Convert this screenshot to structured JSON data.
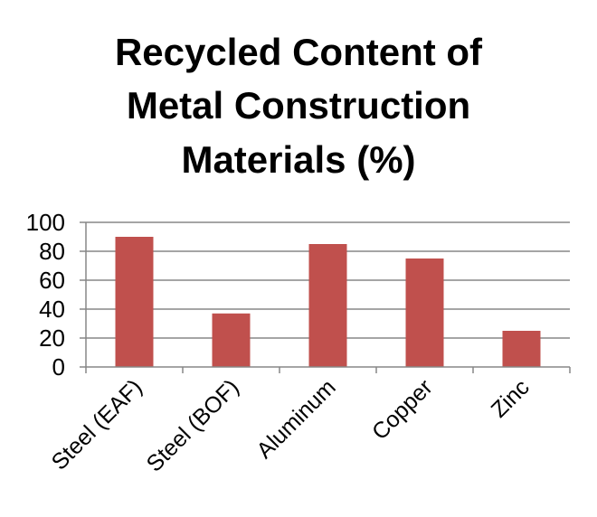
{
  "chart_data": {
    "type": "bar",
    "title_lines": [
      "Recycled Content of",
      "Metal Construction",
      "Materials (%)"
    ],
    "categories": [
      "Steel (EAF)",
      "Steel (BOF)",
      "Aluminum",
      "Copper",
      "Zinc"
    ],
    "values": [
      90,
      37,
      85,
      75,
      25
    ],
    "ylim": [
      0,
      100
    ],
    "yticks": [
      0,
      20,
      40,
      60,
      80,
      100
    ],
    "grid": true,
    "legend": "none",
    "bar_color": "#C0504D",
    "grid_color": "#878787"
  }
}
